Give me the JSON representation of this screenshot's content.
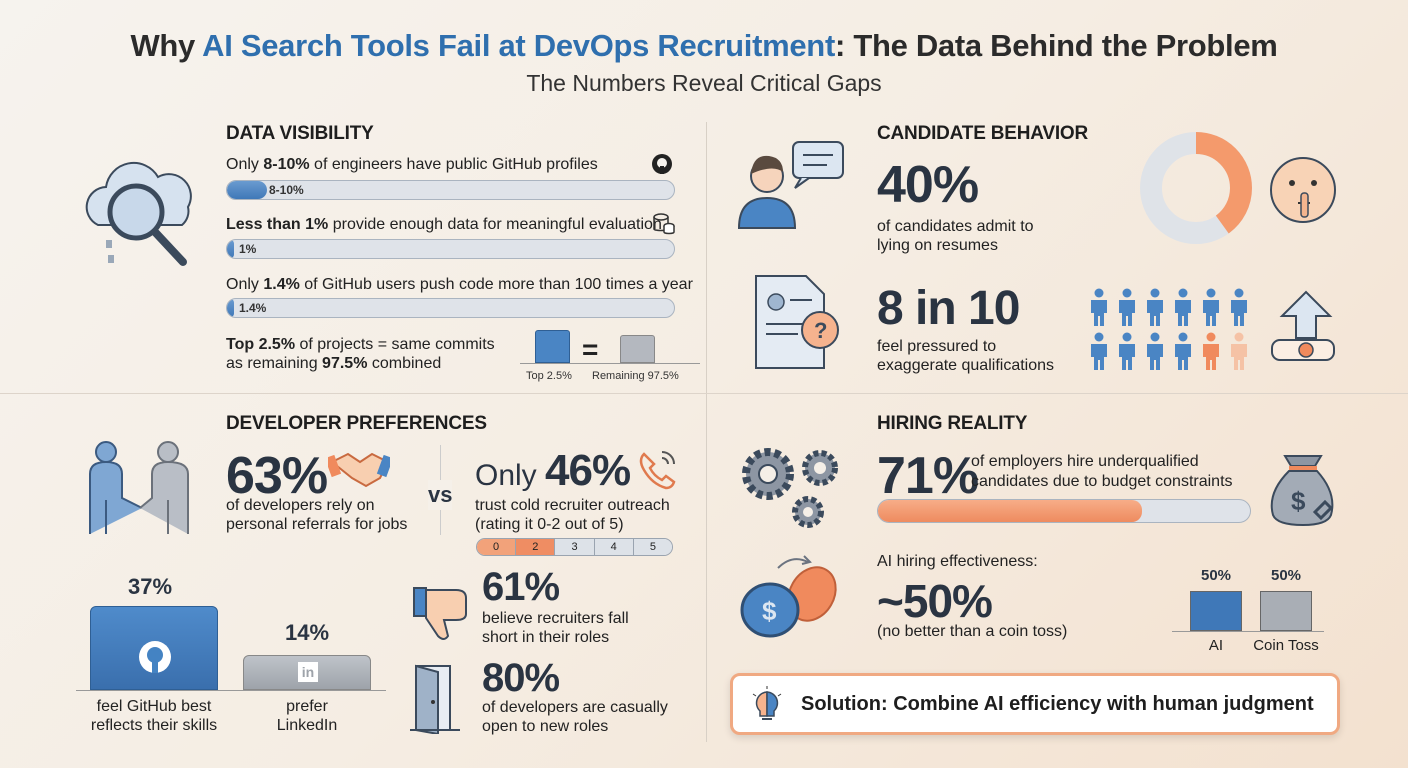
{
  "title": {
    "pre": "Why ",
    "highlight": "AI Search Tools Fail at DevOps Recruitment",
    "post": ": The Data Behind the Problem"
  },
  "subtitle": "The Numbers Reveal Critical Gaps",
  "data_visibility": {
    "heading": "DATA VISIBILITY",
    "rows": [
      {
        "pre": "Only ",
        "bold": "8-10%",
        "post": " of engineers have public GitHub profiles",
        "bar_label": "8-10%",
        "fill_percent": 9,
        "icon": "github-icon"
      },
      {
        "pre": "",
        "bold": "Less than 1%",
        "post": " provide enough data for meaningful evaluation",
        "bar_label": "1%",
        "fill_percent": 1,
        "icon": "database-icon"
      },
      {
        "pre": "Only ",
        "bold": "1.4%",
        "post": " of GitHub users push code more than 100 times a year",
        "bar_label": "1.4%",
        "fill_percent": 1.4
      }
    ],
    "commits": {
      "bold1": "Top 2.5%",
      "text1": " of projects = same commits",
      "text2": "as remaining ",
      "bold2": "97.5%",
      "text3": " combined",
      "label_a": "Top 2.5%",
      "equals": "=",
      "label_b": "Remaining 97.5%"
    }
  },
  "candidate_behavior": {
    "heading": "CANDIDATE BEHAVIOR",
    "stat1": {
      "value": "40%",
      "line1": "of candidates admit to",
      "line2": "lying on resumes",
      "donut_percent": 40
    },
    "stat2": {
      "value": "8 in 10",
      "line1": "feel pressured to",
      "line2": "exaggerate qualifications",
      "highlighted_people": 8,
      "total_people": 10
    }
  },
  "developer_preferences": {
    "heading": "DEVELOPER PREFERENCES",
    "referrals": {
      "value": "63%",
      "line1": "of developers rely on",
      "line2": "personal referrals for jobs"
    },
    "vs": "vs",
    "cold": {
      "prefix": "Only ",
      "value": "46%",
      "line1": "trust cold recruiter outreach",
      "line2": "(rating it 0-2 out of 5)",
      "scale": [
        "0",
        "2",
        "3",
        "4",
        "5"
      ],
      "selected_through": "2"
    },
    "github": {
      "value": "37%",
      "line1": "feel GitHub best",
      "line2": "reflects their skills"
    },
    "linkedin": {
      "value": "14%",
      "line1": "prefer",
      "line2": "LinkedIn",
      "logo": "in"
    },
    "fall_short": {
      "value": "61%",
      "line1": "believe recruiters fall",
      "line2": "short in their roles"
    },
    "open": {
      "value": "80%",
      "line1": "of developers are casually",
      "line2": "open to new roles"
    }
  },
  "hiring_reality": {
    "heading": "HIRING REALITY",
    "underqualified": {
      "value": "71%",
      "line1": "of employers hire underqualified",
      "line2": "candidates due to budget constraints",
      "fill_percent": 71
    },
    "ai": {
      "label": "AI hiring effectiveness:",
      "value": "~50%",
      "note": "(no better than a coin toss)",
      "bars": [
        {
          "label": "AI",
          "value": "50%",
          "color": "#3f78b8"
        },
        {
          "label": "Coin Toss",
          "value": "50%",
          "color": "#a9aeb5"
        }
      ]
    }
  },
  "solution": "Solution: Combine AI efficiency with human judgment",
  "colors": {
    "blue": "#3f78b8",
    "orange": "#f08a5d",
    "gray": "#a9aeb5",
    "dark": "#2a3442"
  }
}
